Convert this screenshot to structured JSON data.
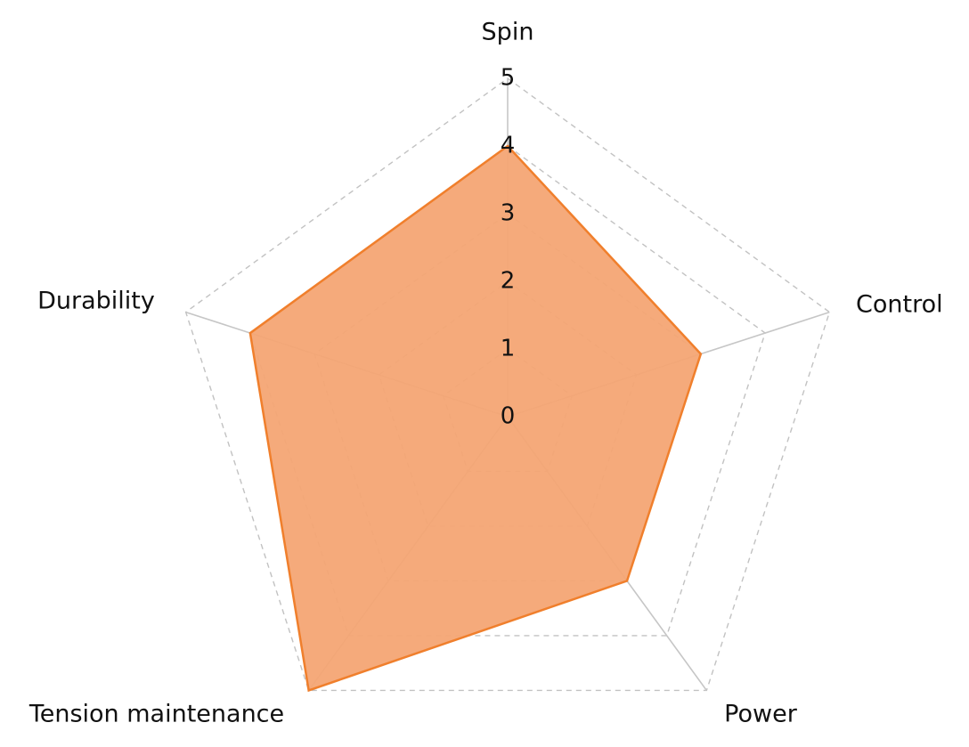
{
  "chart_data": {
    "type": "radar",
    "axes": [
      "Spin",
      "Control",
      "Power",
      "Tension maintenance",
      "Durability"
    ],
    "range": [
      0,
      5
    ],
    "ticks": [
      "0",
      "1",
      "2",
      "3",
      "4",
      "5"
    ],
    "grid": true,
    "grid_style": "dashed",
    "series": [
      {
        "values": [
          4,
          3,
          3,
          5,
          4
        ],
        "color": "#f07f2c",
        "fill_color": "#f4a574"
      }
    ]
  }
}
